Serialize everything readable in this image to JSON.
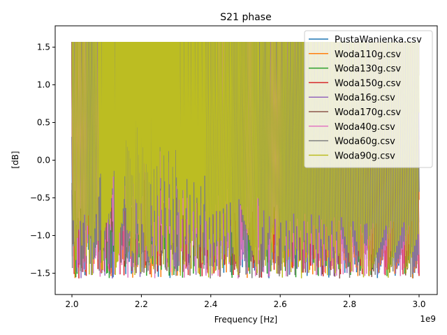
{
  "chart_data": {
    "type": "line",
    "title": "S21 phase",
    "xlabel": "Frequency [Hz]",
    "ylabel": "[dB]",
    "x_offset_label": "1e9",
    "xlim": [
      2.0,
      3.0
    ],
    "ylim": [
      -1.57,
      1.57
    ],
    "x_ticks": [
      2.0,
      2.2,
      2.4,
      2.6,
      2.8,
      3.0
    ],
    "x_tick_labels": [
      "2.0",
      "2.2",
      "2.4",
      "2.6",
      "2.8",
      "3.0"
    ],
    "y_ticks": [
      1.5,
      1.0,
      0.5,
      0.0,
      -0.5,
      -1.0,
      -1.5
    ],
    "y_tick_labels": [
      "1.5",
      "1.0",
      "0.5",
      "0.0",
      "−0.5",
      "−1.0",
      "−1.5"
    ],
    "grid": false,
    "legend_position": "top-right",
    "series": [
      {
        "name": "PustaWanienka.csv",
        "color": "#1f77b4",
        "y_start": 1.3,
        "sweeps": [
          22,
          32,
          38,
          32,
          28,
          24,
          22,
          20,
          18,
          17,
          16,
          15,
          15
        ]
      },
      {
        "name": "Woda110g.csv",
        "color": "#ff7f0e",
        "y_start": -0.6,
        "sweeps": [
          18,
          32,
          44,
          36,
          26,
          22,
          20,
          19,
          18,
          17,
          16,
          15,
          15
        ]
      },
      {
        "name": "Woda130g.csv",
        "color": "#2ca02c",
        "y_start": -0.9,
        "sweeps": [
          20,
          30,
          40,
          34,
          27,
          23,
          21,
          19,
          18,
          17,
          16,
          15,
          15
        ]
      },
      {
        "name": "Woda150g.csv",
        "color": "#d62728",
        "y_start": -1.0,
        "sweeps": [
          22,
          34,
          42,
          30,
          25,
          22,
          20,
          19,
          18,
          17,
          16,
          15,
          15
        ]
      },
      {
        "name": "Woda16g.csv",
        "color": "#9467bd",
        "y_start": 0.4,
        "sweeps": [
          18,
          26,
          36,
          32,
          26,
          23,
          21,
          19,
          18,
          17,
          16,
          15,
          15
        ]
      },
      {
        "name": "Woda170g.csv",
        "color": "#8c564b",
        "y_start": -1.2,
        "sweeps": [
          20,
          30,
          38,
          33,
          27,
          23,
          21,
          20,
          18,
          17,
          16,
          15,
          15
        ]
      },
      {
        "name": "Woda40g.csv",
        "color": "#e377c2",
        "y_start": 0.0,
        "sweeps": [
          24,
          36,
          44,
          34,
          26,
          22,
          20,
          19,
          18,
          17,
          16,
          15,
          15
        ]
      },
      {
        "name": "Woda60g.csv",
        "color": "#7f7f7f",
        "y_start": 0.6,
        "sweeps": [
          20,
          28,
          40,
          36,
          28,
          24,
          22,
          20,
          18,
          17,
          16,
          15,
          15
        ]
      },
      {
        "name": "Woda90g.csv",
        "color": "#bcbd22",
        "y_start": -0.4,
        "sweeps": [
          18,
          30,
          42,
          34,
          27,
          23,
          21,
          19,
          18,
          17,
          16,
          15,
          15
        ]
      }
    ]
  }
}
